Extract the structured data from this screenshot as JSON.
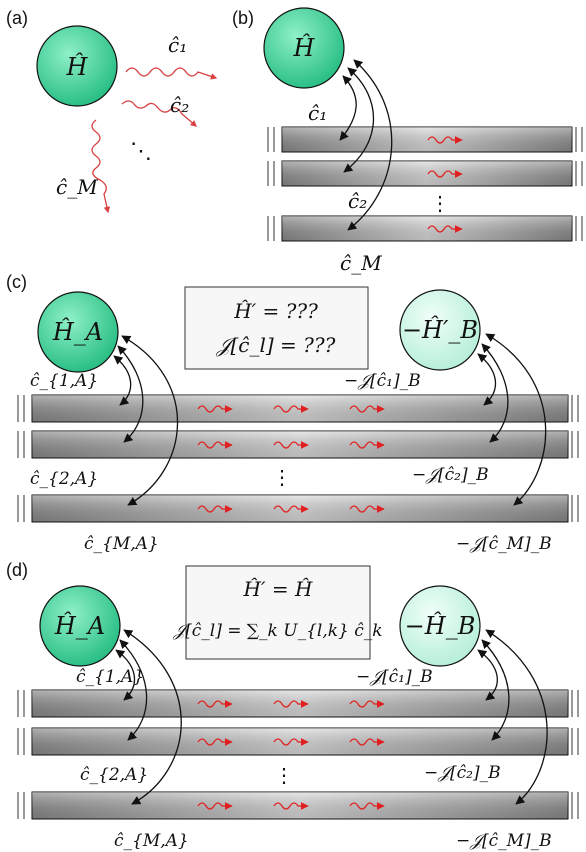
{
  "panels": {
    "a": {
      "label": "(a)",
      "H": "Ĥ",
      "c1": "ĉ₁",
      "c2": "ĉ₂",
      "cM": "ĉ_M",
      "dots": "⋱"
    },
    "b": {
      "label": "(b)",
      "H": "Ĥ",
      "c1": "ĉ₁",
      "c2": "ĉ₂",
      "cM": "ĉ_M",
      "dots": "⋮"
    },
    "c": {
      "label": "(c)",
      "HA": "Ĥ_A",
      "HB": "−Ĥ′_B",
      "box_line1": "Ĥ′ = ???",
      "box_line2": "𝒥[ĉ_l] = ???",
      "c1A": "ĉ_{1,A}",
      "c2A": "ĉ_{2,A}",
      "cMA": "ĉ_{M,A}",
      "J1": "−𝒥[ĉ₁]_B",
      "J2": "−𝒥[ĉ₂]_B",
      "JM": "−𝒥[ĉ_M]_B",
      "dots": "⋮"
    },
    "d": {
      "label": "(d)",
      "HA": "Ĥ_A",
      "HB": "−Ĥ_B",
      "box_line1": "Ĥ′ = Ĥ",
      "box_line2": "𝒥[ĉ_l] = ∑_k U_{l,k} ĉ_k",
      "c1A": "ĉ_{1,A}",
      "c2A": "ĉ_{2,A}",
      "cMA": "ĉ_{M,A}",
      "J1": "−𝒥[ĉ₁]_B",
      "J2": "−𝒥[ĉ₂]_B",
      "JM": "−𝒥[ĉ_M]_B",
      "dots": "⋮"
    }
  },
  "colors": {
    "circle_dark": "#3fd39a",
    "circle_light": "#c9f7e6",
    "waveguide": "#9a9a9a",
    "wave_arrow": "#e02020",
    "emission": "#d94040"
  }
}
